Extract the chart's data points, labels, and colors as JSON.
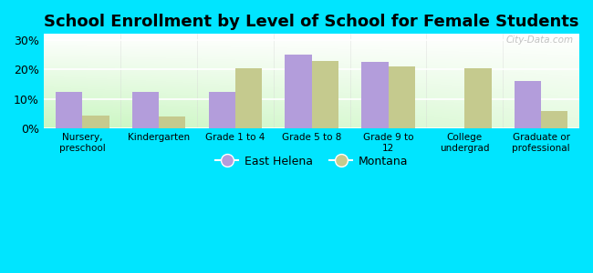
{
  "title": "School Enrollment by Level of School for Female Students",
  "categories": [
    "Nursery,\npreschool",
    "Kindergarten",
    "Grade 1 to 4",
    "Grade 5 to 8",
    "Grade 9 to\n12",
    "College\nundergrad",
    "Graduate or\nprofessional"
  ],
  "east_helena": [
    12.5,
    12.5,
    12.5,
    25.0,
    22.5,
    0.0,
    16.0
  ],
  "montana": [
    4.5,
    4.0,
    20.5,
    23.0,
    21.0,
    20.5,
    6.0
  ],
  "east_helena_color": "#b39ddb",
  "montana_color": "#c5ca8e",
  "ylim": [
    0,
    32
  ],
  "yticks": [
    0,
    10,
    20,
    30
  ],
  "yticklabels": [
    "0%",
    "10%",
    "20%",
    "30%"
  ],
  "legend_labels": [
    "East Helena",
    "Montana"
  ],
  "background_color": "#00e5ff",
  "watermark": "City-Data.com",
  "bar_width": 0.35,
  "title_fontsize": 13
}
